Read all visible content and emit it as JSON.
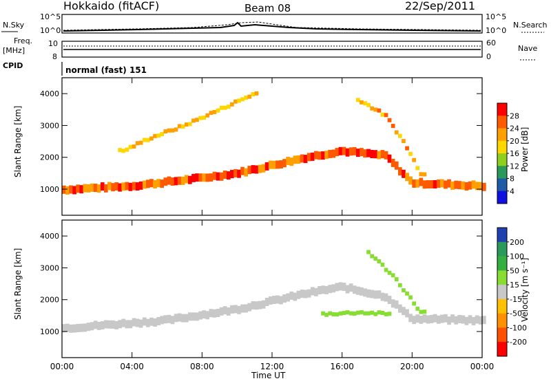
{
  "header": {
    "title": "Hokkaido (fitACF)",
    "beam": "Beam 08",
    "date": "22/Sep/2011"
  },
  "top_panels": {
    "nsky_label": "N.Sky",
    "nsky_ticks": [
      "10^5",
      "10^0"
    ],
    "nsearch_label": "N.Search",
    "nsearch_ticks": [
      "10^5",
      "10^0"
    ],
    "freq_label": "Freq.",
    "freq_unit": "[MHz]",
    "freq_ticks": [
      "10",
      "8"
    ],
    "nave_label": "Nave",
    "nave_ticks": [
      "60",
      "0"
    ],
    "cpid_label": "CPID",
    "cpid_text": "normal (fast) 151"
  },
  "axes": {
    "x_ticks": [
      "00:00",
      "04:00",
      "08:00",
      "12:00",
      "16:00",
      "20:00",
      "00:00"
    ],
    "x_label": "Time UT",
    "y_ticks": [
      "1000",
      "2000",
      "3000",
      "4000"
    ],
    "y_label": "Slant Range [km]"
  },
  "colorbars": {
    "power": {
      "title": "Power [dB]",
      "labels": [
        "28",
        "24",
        "20",
        "16",
        "12",
        "8",
        "4"
      ],
      "colors": [
        "#ff0000",
        "#ff5a00",
        "#ffa000",
        "#ffd700",
        "#8fd01f",
        "#2a9a5a",
        "#1f5aa6",
        "#1010e0"
      ]
    },
    "velocity": {
      "title": "Velocity [m s⁻¹]",
      "labels": [
        "200",
        "100",
        "50",
        "15",
        "-15",
        "-50",
        "-100",
        "-200"
      ],
      "colors": [
        "#2040b0",
        "#2a9a5a",
        "#33b040",
        "#88dd33",
        "#c8c8c8",
        "#ffc000",
        "#ff9000",
        "#ff5000",
        "#ff0000"
      ]
    }
  },
  "chart_data": [
    {
      "type": "heatmap",
      "title": "Power [dB]",
      "xlabel": "Time UT",
      "ylabel": "Slant Range [km]",
      "xlim_hours": [
        0,
        24
      ],
      "ylim_km": [
        180,
        4500
      ],
      "colorscale": "power",
      "features": [
        {
          "name": "main band",
          "points_hours_km": [
            [
              0,
              980
            ],
            [
              4,
              1100
            ],
            [
              8,
              1350
            ],
            [
              10,
              1500
            ],
            [
              12,
              1750
            ],
            [
              14,
              2000
            ],
            [
              16,
              2200
            ],
            [
              18.5,
              2050
            ],
            [
              20,
              1200
            ],
            [
              22,
              1150
            ],
            [
              24,
              1100
            ]
          ],
          "value_db": 26
        },
        {
          "name": "upper streaks",
          "points_hours_km": [
            [
              3.5,
              2200
            ],
            [
              5,
              2600
            ],
            [
              7,
              3000
            ],
            [
              9,
              3500
            ],
            [
              11,
              4000
            ]
          ],
          "value_db": 20
        },
        {
          "name": "descending trace",
          "points_hours_km": [
            [
              17,
              3800
            ],
            [
              18.5,
              3300
            ],
            [
              19.5,
              2500
            ],
            [
              20.5,
              1500
            ]
          ],
          "value_db": 22
        }
      ]
    },
    {
      "type": "heatmap",
      "title": "Velocity [m s⁻¹]",
      "xlabel": "Time UT",
      "ylabel": "Slant Range [km]",
      "xlim_hours": [
        0,
        24
      ],
      "ylim_km": [
        180,
        4500
      ],
      "colorscale": "velocity",
      "features": [
        {
          "name": "ground scatter band",
          "points_hours_km": [
            [
              0,
              1100
            ],
            [
              6,
              1350
            ],
            [
              10,
              1700
            ],
            [
              14,
              2200
            ],
            [
              16,
              2400
            ],
            [
              18.5,
              2100
            ],
            [
              20,
              1400
            ],
            [
              24,
              1350
            ]
          ],
          "value_ms": 0
        },
        {
          "name": "positive velocity band",
          "points_hours_km": [
            [
              15,
              1550
            ],
            [
              17,
              1600
            ],
            [
              18.5,
              1550
            ]
          ],
          "value_ms": 30
        },
        {
          "name": "descending positive trace",
          "points_hours_km": [
            [
              17.5,
              3500
            ],
            [
              19,
              2700
            ],
            [
              20.5,
              1600
            ]
          ],
          "value_ms": 30
        }
      ]
    }
  ]
}
